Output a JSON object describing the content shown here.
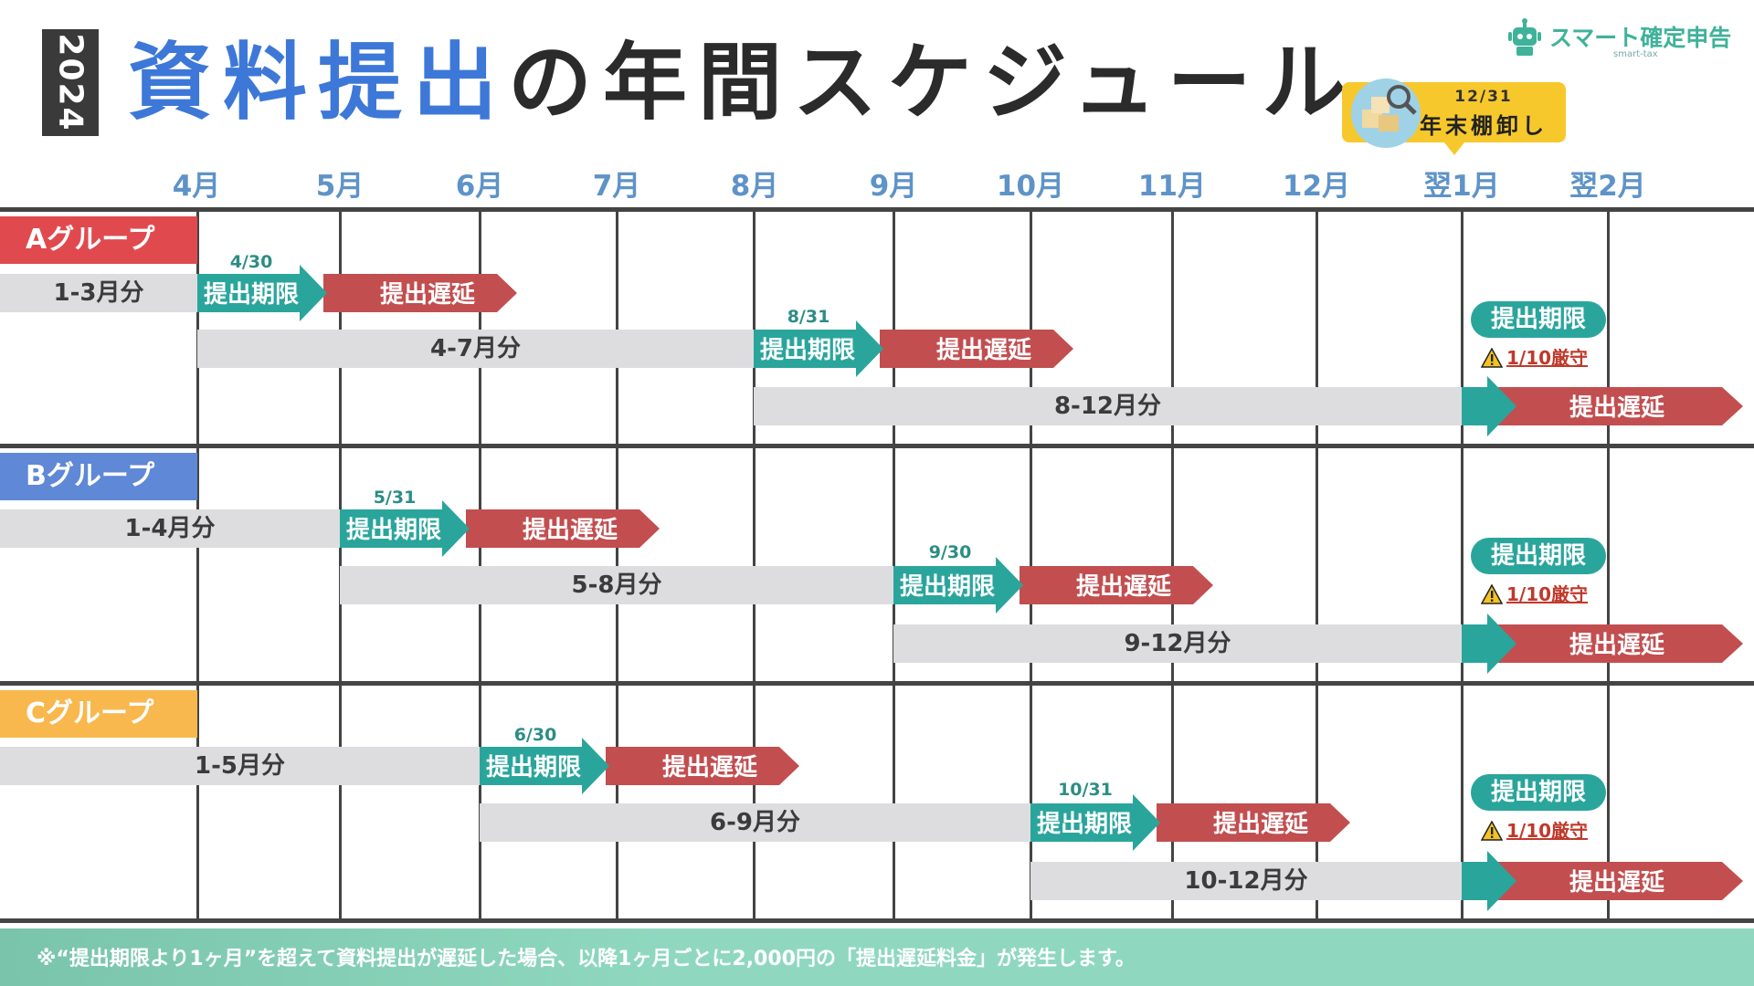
{
  "header": {
    "year": "2024",
    "title_blue": "資料提出",
    "title_dark": "の年間スケジュール"
  },
  "logo": {
    "text": "スマート確定申告",
    "sub": "smart-tax",
    "icon": "robot-icon"
  },
  "callout": {
    "date": "12/31",
    "label": "年末棚卸し",
    "icon": "magnifier-boxes-icon"
  },
  "months": [
    "4月",
    "5月",
    "6月",
    "7月",
    "8月",
    "9月",
    "10月",
    "11月",
    "12月",
    "翌1月",
    "翌2月"
  ],
  "labels": {
    "deadline": "提出期限",
    "delay": "提出遅延",
    "strict": "1/10厳守"
  },
  "colors": {
    "teal": "#2aa59c",
    "red": "#c24e50",
    "bar": "#dddde0",
    "groupA": "#e04a4f",
    "groupB": "#5f88d6",
    "groupC": "#f8b84e"
  },
  "groups": [
    {
      "name": "Aグループ",
      "rows": [
        {
          "period": "1-3月分",
          "deadline_date": "4/30"
        },
        {
          "period": "4-7月分",
          "deadline_date": "8/31"
        },
        {
          "period": "8-12月分",
          "deadline_note": "1/10厳守"
        }
      ]
    },
    {
      "name": "Bグループ",
      "rows": [
        {
          "period": "1-4月分",
          "deadline_date": "5/31"
        },
        {
          "period": "5-8月分",
          "deadline_date": "9/30"
        },
        {
          "period": "9-12月分",
          "deadline_note": "1/10厳守"
        }
      ]
    },
    {
      "name": "Cグループ",
      "rows": [
        {
          "period": "1-5月分",
          "deadline_date": "6/30"
        },
        {
          "period": "6-9月分",
          "deadline_date": "10/31"
        },
        {
          "period": "10-12月分",
          "deadline_note": "1/10厳守"
        }
      ]
    }
  ],
  "footer": "※“提出期限より1ヶ月”を超えて資料提出が遅延した場合、以降1ヶ月ごとに2,000円の「提出遅延料金」が発生します。"
}
